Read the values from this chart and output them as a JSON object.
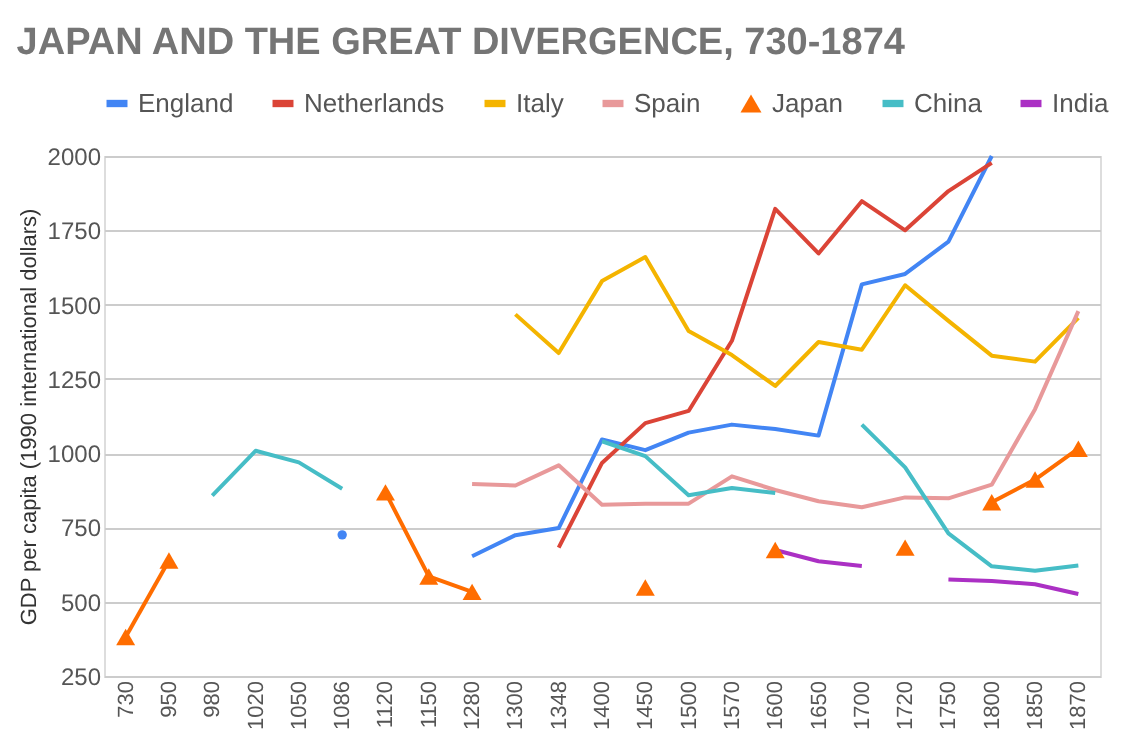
{
  "chart_data": {
    "type": "line",
    "title": "JAPAN AND THE GREAT DIVERGENCE, 730-1874",
    "ylabel": "GDP per capita (1990 international dollars)",
    "categories": [
      "730",
      "950",
      "980",
      "1020",
      "1050",
      "1086",
      "1120",
      "1150",
      "1280",
      "1300",
      "1348",
      "1400",
      "1450",
      "1500",
      "1570",
      "1600",
      "1650",
      "1700",
      "1720",
      "1750",
      "1800",
      "1850",
      "1870"
    ],
    "ylim": [
      250,
      2000
    ],
    "yticks": [
      250,
      500,
      750,
      1000,
      1250,
      1500,
      1750,
      2000
    ],
    "grid": "y",
    "legend": "top",
    "marker": "none",
    "series": [
      {
        "name": "England",
        "color": "#4285f4",
        "values": [
          null,
          null,
          null,
          null,
          null,
          725,
          null,
          null,
          653,
          724,
          748,
          1046,
          1010,
          1069,
          1096,
          1081,
          1059,
          1568,
          1603,
          1712,
          2000,
          null,
          null
        ]
      },
      {
        "name": "Netherlands",
        "color": "#db4437",
        "values": [
          null,
          null,
          null,
          null,
          null,
          null,
          null,
          null,
          null,
          null,
          682,
          967,
          1101,
          1142,
          1378,
          1822,
          1672,
          1848,
          1750,
          1882,
          1977,
          null,
          null
        ]
      },
      {
        "name": "Italy",
        "color": "#f4b400",
        "values": [
          null,
          null,
          null,
          null,
          null,
          null,
          null,
          null,
          null,
          1467,
          1337,
          1579,
          1660,
          1411,
          1330,
          1226,
          1374,
          1348,
          1565,
          1445,
          1328,
          1308,
          1455
        ]
      },
      {
        "name": "Spain",
        "color": "#e8999a",
        "values": [
          null,
          null,
          null,
          null,
          null,
          null,
          null,
          null,
          896,
          891,
          959,
          826,
          830,
          830,
          922,
          876,
          838,
          818,
          851,
          848,
          894,
          1148,
          1478
        ]
      },
      {
        "name": "Japan",
        "color": "#ff6d00",
        "marker": "triangle",
        "values": [
          381,
          639,
          null,
          null,
          null,
          null,
          868,
          585,
          533,
          null,
          null,
          null,
          548,
          null,
          null,
          674,
          null,
          null,
          682,
          null,
          835,
          911,
          1015
        ]
      },
      {
        "name": "China",
        "color": "#46bdc6",
        "values": [
          null,
          null,
          857,
          1008,
          969,
          880,
          null,
          null,
          null,
          null,
          null,
          1040,
          990,
          858,
          883,
          866,
          null,
          1096,
          952,
          730,
          619,
          604,
          622
        ]
      },
      {
        "name": "India",
        "color": "#ab30c4",
        "values": [
          null,
          null,
          null,
          null,
          null,
          null,
          null,
          null,
          null,
          null,
          null,
          null,
          null,
          null,
          null,
          674,
          636,
          620,
          null,
          575,
          570,
          559,
          526
        ]
      }
    ]
  }
}
